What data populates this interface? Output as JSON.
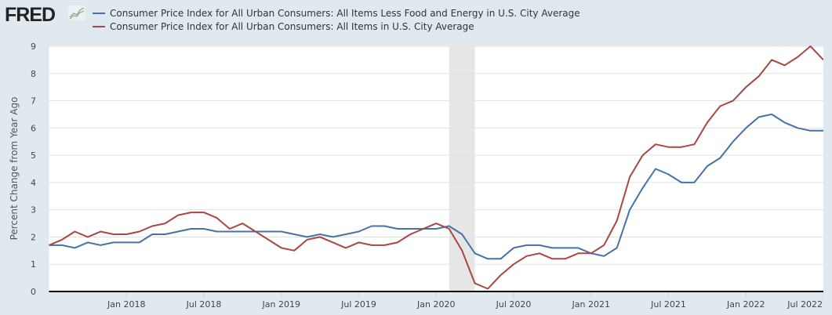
{
  "header": {
    "logo_text": "FRED",
    "logo_icon": "line-chart-icon"
  },
  "chart_data": {
    "type": "line",
    "title": "",
    "xlabel": "",
    "ylabel": "Percent Change from Year Ago",
    "ylim": [
      0,
      9
    ],
    "yticks": [
      "0",
      "1",
      "2",
      "3",
      "4",
      "5",
      "6",
      "7",
      "8",
      "9"
    ],
    "grid": true,
    "legend_position": "top-left",
    "x_start": "2017-07",
    "x_end": "2022-07",
    "xticks": [
      {
        "month_index": 6,
        "label": "Jan 2018"
      },
      {
        "month_index": 12,
        "label": "Jul 2018"
      },
      {
        "month_index": 18,
        "label": "Jan 2019"
      },
      {
        "month_index": 24,
        "label": "Jul 2019"
      },
      {
        "month_index": 30,
        "label": "Jan 2020"
      },
      {
        "month_index": 36,
        "label": "Jul 2020"
      },
      {
        "month_index": 42,
        "label": "Jan 2021"
      },
      {
        "month_index": 48,
        "label": "Jul 2021"
      },
      {
        "month_index": 54,
        "label": "Jan 2022"
      },
      {
        "month_index": 60,
        "label": "Jul 2022"
      }
    ],
    "recession_shading": {
      "start_month_index": 31,
      "end_month_index": 33,
      "label": "Feb 2020 – Apr 2020"
    },
    "series": [
      {
        "name": "Consumer Price Index for All Urban Consumers: All Items Less Food and Energy in U.S. City Average",
        "color": "#4572a7",
        "values": [
          1.7,
          1.7,
          1.6,
          1.8,
          1.7,
          1.8,
          1.8,
          1.8,
          2.1,
          2.1,
          2.2,
          2.3,
          2.3,
          2.2,
          2.2,
          2.2,
          2.2,
          2.2,
          2.2,
          2.1,
          2.0,
          2.1,
          2.0,
          2.1,
          2.2,
          2.4,
          2.4,
          2.3,
          2.3,
          2.3,
          2.3,
          2.4,
          2.1,
          1.4,
          1.2,
          1.2,
          1.6,
          1.7,
          1.7,
          1.6,
          1.6,
          1.6,
          1.4,
          1.3,
          1.6,
          3.0,
          3.8,
          4.5,
          4.3,
          4.0,
          4.0,
          4.6,
          4.9,
          5.5,
          6.0,
          6.4,
          6.5,
          6.2,
          6.0,
          5.9,
          5.9
        ]
      },
      {
        "name": "Consumer Price Index for All Urban Consumers: All Items in U.S. City Average",
        "color": "#aa4643",
        "values": [
          1.7,
          1.9,
          2.2,
          2.0,
          2.2,
          2.1,
          2.1,
          2.2,
          2.4,
          2.5,
          2.8,
          2.9,
          2.9,
          2.7,
          2.3,
          2.5,
          2.2,
          1.9,
          1.6,
          1.5,
          1.9,
          2.0,
          1.8,
          1.6,
          1.8,
          1.7,
          1.7,
          1.8,
          2.1,
          2.3,
          2.5,
          2.3,
          1.5,
          0.3,
          0.1,
          0.6,
          1.0,
          1.3,
          1.4,
          1.2,
          1.2,
          1.4,
          1.4,
          1.7,
          2.6,
          4.2,
          5.0,
          5.4,
          5.3,
          5.3,
          5.4,
          6.2,
          6.8,
          7.0,
          7.5,
          7.9,
          8.5,
          8.3,
          8.6,
          9.0,
          8.5
        ]
      }
    ]
  }
}
